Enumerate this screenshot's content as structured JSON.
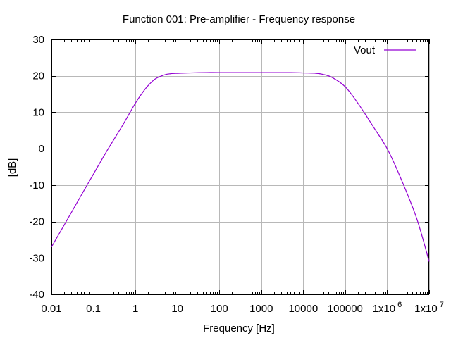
{
  "chart_data": {
    "type": "line",
    "title": "Function 001: Pre-amplifier - Frequency response",
    "xlabel": "Frequency [Hz]",
    "ylabel": "[dB]",
    "xscale": "log",
    "xlim": [
      0.01,
      10000000
    ],
    "ylim": [
      -40,
      30
    ],
    "grid": true,
    "legend": "top-right",
    "x_ticks": [
      {
        "value": 0.01,
        "label": "0.01"
      },
      {
        "value": 0.1,
        "label": "0.1"
      },
      {
        "value": 1,
        "label": "1"
      },
      {
        "value": 10,
        "label": "10"
      },
      {
        "value": 100,
        "label": "100"
      },
      {
        "value": 1000,
        "label": "1000"
      },
      {
        "value": 10000,
        "label": "10000"
      },
      {
        "value": 100000,
        "label": "100000"
      },
      {
        "value": 1000000,
        "label": "1x10",
        "exp": "6"
      },
      {
        "value": 10000000,
        "label": "1x10",
        "exp": "7"
      }
    ],
    "y_ticks": [
      {
        "value": -40,
        "label": "-40"
      },
      {
        "value": -30,
        "label": "-30"
      },
      {
        "value": -20,
        "label": "-20"
      },
      {
        "value": -10,
        "label": "-10"
      },
      {
        "value": 0,
        "label": "0"
      },
      {
        "value": 10,
        "label": "10"
      },
      {
        "value": 20,
        "label": "20"
      },
      {
        "value": 30,
        "label": "30"
      }
    ],
    "series": [
      {
        "name": "Vout",
        "color": "#9400d3",
        "x": [
          0.01,
          0.02,
          0.05,
          0.1,
          0.2,
          0.5,
          1,
          1.5,
          2,
          3,
          5,
          7,
          10,
          20,
          50,
          100,
          1000,
          5000,
          10000,
          20000,
          30000,
          50000,
          100000,
          200000,
          500000,
          1000000,
          2000000,
          5000000,
          10000000
        ],
        "y": [
          -27.0,
          -21.0,
          -13.0,
          -7.0,
          -1.0,
          6.5,
          12.5,
          15.5,
          17.3,
          19.2,
          20.3,
          20.6,
          20.7,
          20.8,
          20.9,
          20.9,
          20.9,
          20.9,
          20.8,
          20.7,
          20.4,
          19.5,
          17.0,
          12.5,
          5.5,
          0.0,
          -7.5,
          -19.0,
          -31.0
        ]
      }
    ]
  }
}
